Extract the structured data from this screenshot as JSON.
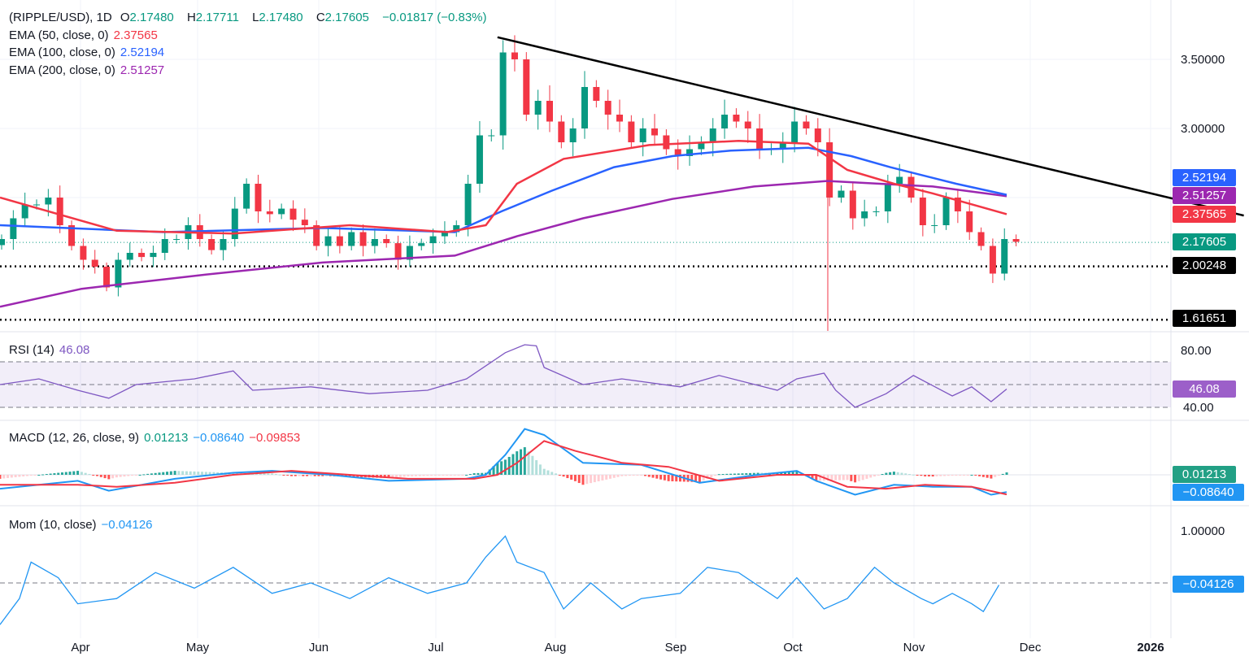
{
  "header": {
    "symbol": "(RIPPLE/USD), 1D",
    "o_label": "O",
    "o": "2.17480",
    "h_label": "H",
    "h": "2.17711",
    "l_label": "L",
    "l": "2.17480",
    "c_label": "C",
    "c": "2.17605",
    "change": "−0.01817 (−0.83%)"
  },
  "indicators": {
    "ema50": {
      "label": "EMA (50, close, 0)",
      "value": "2.37565",
      "color": "#f23645"
    },
    "ema100": {
      "label": "EMA (100, close, 0)",
      "value": "2.52194",
      "color": "#2962ff"
    },
    "ema200": {
      "label": "EMA (200, close, 0)",
      "value": "2.51257",
      "color": "#9c27b0"
    },
    "rsi": {
      "label": "RSI (14)",
      "value": "46.08",
      "color": "#7e57c2"
    },
    "macd": {
      "label": "MACD (12, 26, close, 9)",
      "hist": "0.01213",
      "macd": "−0.08640",
      "signal": "−0.09853"
    },
    "mom": {
      "label": "Mom (10, close)",
      "value": "−0.04126",
      "color": "#2196f3"
    }
  },
  "axis_labels": {
    "p350": "3.50000",
    "p300": "3.00000",
    "rsi80": "80.00",
    "rsi40": "40.00",
    "mom1": "1.00000"
  },
  "price_tags": {
    "ema100": "2.52194",
    "ema200": "2.51257",
    "ema50": "2.37565",
    "last": "2.17605",
    "support1": "2.00248",
    "support2": "1.61651"
  },
  "chart_data": {
    "type": "line",
    "title": "(RIPPLE/USD), 1D",
    "x_tick_labels": [
      "Apr",
      "May",
      "Jun",
      "Jul",
      "Aug",
      "Sep",
      "Oct",
      "Nov",
      "Dec",
      "2026"
    ],
    "x_unit": "days since Mar 12",
    "close_step_days": 3,
    "closes": [
      2.2,
      2.35,
      2.45,
      2.45,
      2.5,
      2.3,
      2.15,
      2.05,
      2.0,
      1.85,
      2.05,
      2.1,
      2.07,
      2.1,
      2.2,
      2.2,
      2.3,
      2.2,
      2.12,
      2.2,
      2.42,
      2.6,
      2.4,
      2.38,
      2.42,
      2.34,
      2.3,
      2.15,
      2.22,
      2.15,
      2.25,
      2.15,
      2.2,
      2.17,
      2.05,
      2.15,
      2.17,
      2.22,
      2.25,
      2.3,
      2.6,
      2.95,
      2.95,
      3.55,
      3.5,
      3.1,
      3.2,
      3.05,
      2.9,
      3.0,
      3.3,
      3.2,
      3.1,
      3.05,
      2.9,
      3.0,
      2.95,
      2.85,
      2.8,
      2.85,
      2.9,
      3.0,
      3.1,
      3.05,
      3.0,
      2.85,
      2.85,
      2.9,
      3.05,
      3.0,
      2.9,
      2.5,
      2.55,
      2.35,
      2.4,
      2.4,
      2.6,
      2.65,
      2.5,
      2.3,
      2.3,
      2.5,
      2.4,
      2.25,
      2.15,
      1.95,
      2.2,
      2.18
    ],
    "ema50": [
      [
        0,
        2.5
      ],
      [
        30,
        2.26
      ],
      [
        60,
        2.24
      ],
      [
        90,
        2.3
      ],
      [
        115,
        2.25
      ],
      [
        125,
        2.3
      ],
      [
        133,
        2.6
      ],
      [
        145,
        2.78
      ],
      [
        167,
        2.88
      ],
      [
        190,
        2.91
      ],
      [
        208,
        2.89
      ],
      [
        218,
        2.7
      ],
      [
        230,
        2.6
      ],
      [
        240,
        2.53
      ],
      [
        259,
        2.38
      ]
    ],
    "ema100": [
      [
        0,
        2.3
      ],
      [
        42,
        2.25
      ],
      [
        83,
        2.28
      ],
      [
        117,
        2.25
      ],
      [
        129,
        2.4
      ],
      [
        142,
        2.55
      ],
      [
        158,
        2.72
      ],
      [
        173,
        2.8
      ],
      [
        188,
        2.84
      ],
      [
        208,
        2.86
      ],
      [
        219,
        2.8
      ],
      [
        229,
        2.72
      ],
      [
        246,
        2.6
      ],
      [
        259,
        2.52
      ]
    ],
    "ema200": [
      [
        0,
        1.71
      ],
      [
        21,
        1.84
      ],
      [
        52,
        1.94
      ],
      [
        83,
        2.03
      ],
      [
        117,
        2.08
      ],
      [
        133,
        2.22
      ],
      [
        150,
        2.35
      ],
      [
        173,
        2.49
      ],
      [
        194,
        2.58
      ],
      [
        213,
        2.62
      ],
      [
        240,
        2.58
      ],
      [
        259,
        2.51
      ]
    ],
    "trendline": [
      [
        128,
        3.66
      ],
      [
        320,
        2.37
      ]
    ],
    "horizontal_levels": [
      2.00248,
      1.61651
    ],
    "price_range": [
      1.55,
      3.85
    ],
    "rsi": [
      [
        0,
        50
      ],
      [
        10,
        55
      ],
      [
        20,
        45
      ],
      [
        28,
        38
      ],
      [
        35,
        50
      ],
      [
        50,
        55
      ],
      [
        60,
        62
      ],
      [
        65,
        45
      ],
      [
        80,
        48
      ],
      [
        95,
        42
      ],
      [
        110,
        45
      ],
      [
        120,
        55
      ],
      [
        130,
        78
      ],
      [
        135,
        85
      ],
      [
        138,
        84
      ],
      [
        140,
        65
      ],
      [
        150,
        50
      ],
      [
        160,
        55
      ],
      [
        175,
        48
      ],
      [
        185,
        58
      ],
      [
        200,
        45
      ],
      [
        205,
        55
      ],
      [
        212,
        60
      ],
      [
        215,
        45
      ],
      [
        220,
        30
      ],
      [
        228,
        42
      ],
      [
        235,
        58
      ],
      [
        245,
        40
      ],
      [
        250,
        48
      ],
      [
        255,
        35
      ],
      [
        259,
        46.08
      ]
    ],
    "rsi_bands": [
      30,
      50,
      70
    ],
    "macd_line": [
      [
        0,
        -0.07
      ],
      [
        20,
        -0.03
      ],
      [
        28,
        -0.08
      ],
      [
        45,
        -0.02
      ],
      [
        60,
        0.01
      ],
      [
        70,
        0.02
      ],
      [
        85,
        0.0
      ],
      [
        100,
        -0.03
      ],
      [
        120,
        -0.02
      ],
      [
        125,
        0.0
      ],
      [
        130,
        0.1
      ],
      [
        135,
        0.23
      ],
      [
        140,
        0.2
      ],
      [
        150,
        0.06
      ],
      [
        165,
        0.05
      ],
      [
        180,
        -0.04
      ],
      [
        195,
        0.0
      ],
      [
        205,
        0.02
      ],
      [
        210,
        -0.03
      ],
      [
        220,
        -0.1
      ],
      [
        230,
        -0.05
      ],
      [
        240,
        -0.06
      ],
      [
        250,
        -0.06
      ],
      [
        255,
        -0.1
      ],
      [
        259,
        -0.0864
      ]
    ],
    "signal_line": [
      [
        0,
        -0.05
      ],
      [
        20,
        -0.05
      ],
      [
        30,
        -0.06
      ],
      [
        45,
        -0.04
      ],
      [
        60,
        0.0
      ],
      [
        75,
        0.02
      ],
      [
        90,
        0.0
      ],
      [
        105,
        -0.02
      ],
      [
        122,
        -0.02
      ],
      [
        128,
        0.0
      ],
      [
        133,
        0.06
      ],
      [
        140,
        0.17
      ],
      [
        148,
        0.12
      ],
      [
        160,
        0.06
      ],
      [
        172,
        0.04
      ],
      [
        185,
        -0.03
      ],
      [
        200,
        0.0
      ],
      [
        210,
        0.0
      ],
      [
        218,
        -0.06
      ],
      [
        228,
        -0.07
      ],
      [
        238,
        -0.05
      ],
      [
        250,
        -0.06
      ],
      [
        259,
        -0.0985
      ]
    ],
    "momentum": [
      [
        0,
        -0.8
      ],
      [
        5,
        -0.3
      ],
      [
        8,
        0.4
      ],
      [
        15,
        0.1
      ],
      [
        20,
        -0.4
      ],
      [
        30,
        -0.3
      ],
      [
        40,
        0.2
      ],
      [
        50,
        -0.1
      ],
      [
        60,
        0.3
      ],
      [
        70,
        -0.2
      ],
      [
        80,
        0.0
      ],
      [
        90,
        -0.3
      ],
      [
        100,
        0.1
      ],
      [
        110,
        -0.2
      ],
      [
        120,
        0.0
      ],
      [
        125,
        0.5
      ],
      [
        130,
        0.9
      ],
      [
        133,
        0.4
      ],
      [
        140,
        0.2
      ],
      [
        145,
        -0.5
      ],
      [
        152,
        0.0
      ],
      [
        160,
        -0.5
      ],
      [
        165,
        -0.3
      ],
      [
        175,
        -0.2
      ],
      [
        182,
        0.3
      ],
      [
        190,
        0.2
      ],
      [
        200,
        -0.3
      ],
      [
        205,
        0.1
      ],
      [
        212,
        -0.5
      ],
      [
        218,
        -0.3
      ],
      [
        225,
        0.3
      ],
      [
        230,
        0.0
      ],
      [
        237,
        -0.3
      ],
      [
        240,
        -0.4
      ],
      [
        245,
        -0.2
      ],
      [
        250,
        -0.4
      ],
      [
        253,
        -0.55
      ],
      [
        257,
        -0.04
      ]
    ]
  }
}
